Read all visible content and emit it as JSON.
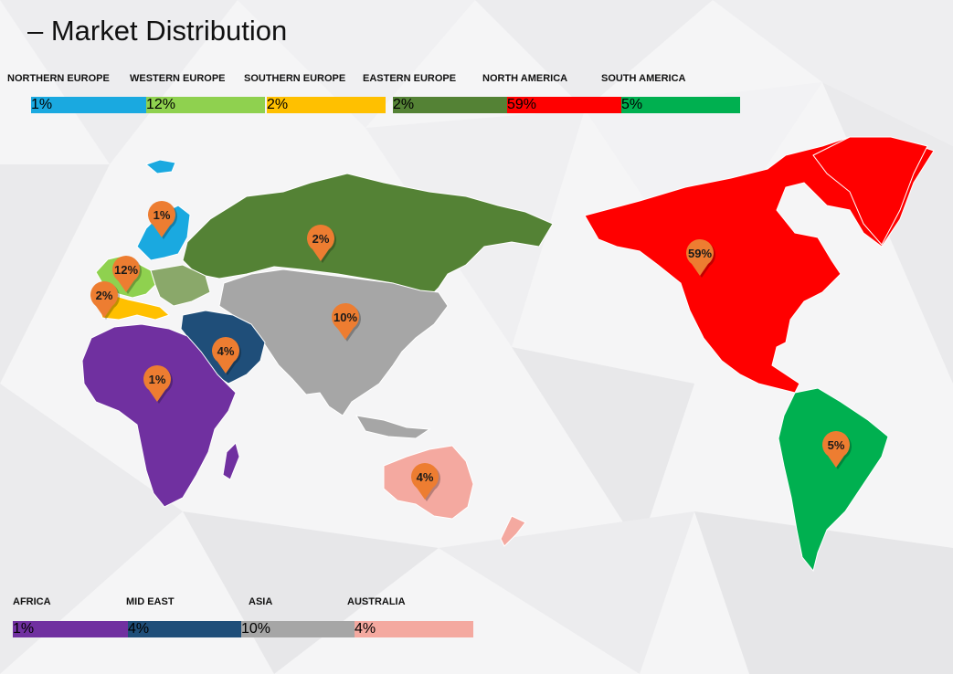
{
  "title": "– Market Distribution",
  "legend": [
    {
      "id": "northern-europe",
      "label": "NORTHERN EUROPE",
      "value": "1%",
      "color": "#1aa9e0"
    },
    {
      "id": "western-europe",
      "label": "WESTERN EUROPE",
      "value": "12%",
      "color": "#8fd14f"
    },
    {
      "id": "southern-europe",
      "label": "SOUTHERN EUROPE",
      "value": "2%",
      "color": "#ffc000"
    },
    {
      "id": "eastern-europe",
      "label": "EASTERN EUROPE",
      "value": "2%",
      "color": "#548235"
    },
    {
      "id": "north-america",
      "label": "NORTH AMERICA",
      "value": "59%",
      "color": "#ff0000"
    },
    {
      "id": "south-america",
      "label": "SOUTH AMERICA",
      "value": "5%",
      "color": "#00b050"
    },
    {
      "id": "africa",
      "label": "AFRICA",
      "value": "1%",
      "color": "#7030a0"
    },
    {
      "id": "mid-east",
      "label": "MID EAST",
      "value": "4%",
      "color": "#1f4e79"
    },
    {
      "id": "asia",
      "label": "ASIA",
      "value": "10%",
      "color": "#a6a6a6"
    },
    {
      "id": "australia",
      "label": "AUSTRALIA",
      "value": "4%",
      "color": "#f4a9a0"
    }
  ],
  "pin_color": "#ed7d31",
  "pins": [
    {
      "region": "northern-europe",
      "value": "1%"
    },
    {
      "region": "western-europe",
      "value": "12%"
    },
    {
      "region": "southern-europe",
      "value": "2%"
    },
    {
      "region": "eastern-europe",
      "value": "2%"
    },
    {
      "region": "asia",
      "value": "10%"
    },
    {
      "region": "mid-east",
      "value": "4%"
    },
    {
      "region": "africa",
      "value": "1%"
    },
    {
      "region": "australia",
      "value": "4%"
    },
    {
      "region": "north-america",
      "value": "59%"
    },
    {
      "region": "south-america",
      "value": "5%"
    }
  ]
}
